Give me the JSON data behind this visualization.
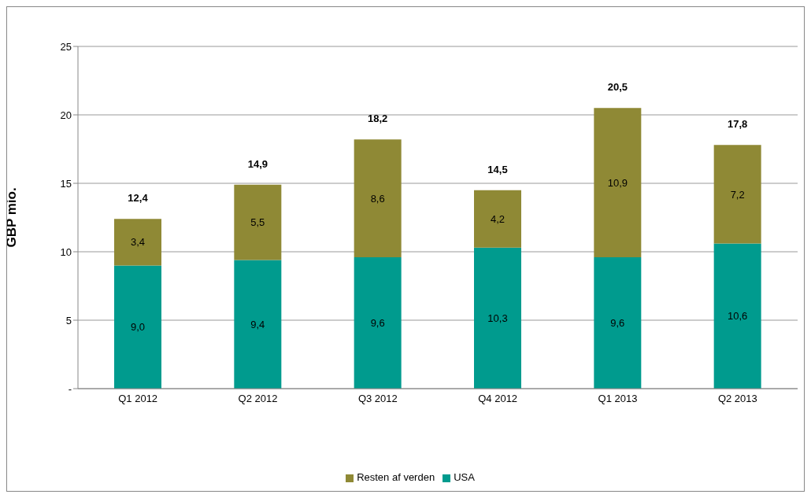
{
  "chart_data": {
    "type": "bar",
    "stacked": true,
    "ylabel": "GBP mio.",
    "categories": [
      "Q1 2012",
      "Q2 2012",
      "Q3 2012",
      "Q4 2012",
      "Q1 2013",
      "Q2 2013"
    ],
    "series": [
      {
        "name": "USA",
        "color": "#009b8e",
        "values": [
          9.0,
          9.4,
          9.6,
          10.3,
          9.6,
          10.6
        ],
        "value_labels": [
          "9,0",
          "9,4",
          "9,6",
          "10,3",
          "9,6",
          "10,6"
        ]
      },
      {
        "name": "Resten af verden",
        "color": "#8f8935",
        "values": [
          3.4,
          5.5,
          8.6,
          4.2,
          10.9,
          7.2
        ],
        "value_labels": [
          "3,4",
          "5,5",
          "8,6",
          "4,2",
          "10,9",
          "7,2"
        ]
      }
    ],
    "totals": [
      "12,4",
      "14,9",
      "18,2",
      "14,5",
      "20,5",
      "17,8"
    ],
    "ylim": [
      0,
      25
    ],
    "yticks": [
      {
        "value": 0,
        "label": "-"
      },
      5,
      10,
      15,
      20,
      25
    ],
    "grid": "y",
    "legend": "bottom"
  }
}
